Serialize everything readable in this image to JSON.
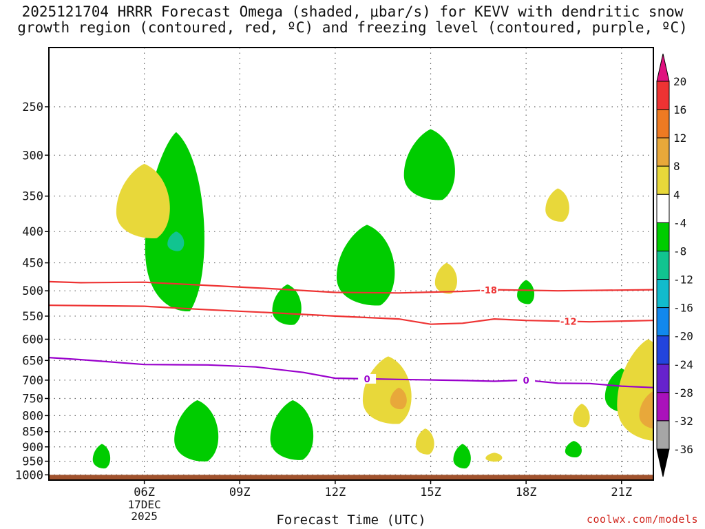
{
  "title": "2025121704 HRRR Forecast Omega (shaded, μbar/s) for KEVV with dendritic snow\ngrowth region (contoured, red, ºC) and freezing level (contoured, purple, ºC)",
  "credit": "coolwx.com/models",
  "chart_data": {
    "type": "contour-time-height",
    "xlabel": "Forecast Time (UTC)",
    "ylabel": "",
    "x_range": [
      "2025-12-17T03:00Z",
      "2025-12-17T22:00Z"
    ],
    "x_ticks": [
      {
        "label": "06Z",
        "sub": [
          "17DEC",
          "2025"
        ],
        "time": "2025-12-17T06:00Z"
      },
      {
        "label": "09Z",
        "sub": [],
        "time": "2025-12-17T09:00Z"
      },
      {
        "label": "12Z",
        "sub": [],
        "time": "2025-12-17T12:00Z"
      },
      {
        "label": "15Z",
        "sub": [],
        "time": "2025-12-17T15:00Z"
      },
      {
        "label": "18Z",
        "sub": [],
        "time": "2025-12-17T18:00Z"
      },
      {
        "label": "21Z",
        "sub": [],
        "time": "2025-12-17T21:00Z"
      }
    ],
    "y_axis": {
      "scale": "log-pressure",
      "units": "mb",
      "reversed": true,
      "range": [
        1020,
        200
      ],
      "ticks": [
        250,
        300,
        350,
        400,
        450,
        500,
        550,
        600,
        650,
        700,
        750,
        800,
        850,
        900,
        950,
        1000
      ]
    },
    "grid": true,
    "colorbar": {
      "labels": [
        20,
        16,
        12,
        8,
        4,
        -4,
        -8,
        -12,
        -16,
        -20,
        -24,
        -28,
        -32,
        -36
      ],
      "bins": [
        {
          "from": 20,
          "to": null,
          "color": "#e0117f"
        },
        {
          "from": 16,
          "to": 20,
          "color": "#ee3333"
        },
        {
          "from": 12,
          "to": 16,
          "color": "#ee7a22"
        },
        {
          "from": 8,
          "to": 12,
          "color": "#e8a83a"
        },
        {
          "from": 4,
          "to": 8,
          "color": "#e8d83a"
        },
        {
          "from": -4,
          "to": 4,
          "color": "#ffffff"
        },
        {
          "from": -8,
          "to": -4,
          "color": "#00cc00"
        },
        {
          "from": -12,
          "to": -8,
          "color": "#11c490"
        },
        {
          "from": -16,
          "to": -12,
          "color": "#11bbcc"
        },
        {
          "from": -20,
          "to": -16,
          "color": "#1188ee"
        },
        {
          "from": -24,
          "to": -20,
          "color": "#2244dd"
        },
        {
          "from": -28,
          "to": -24,
          "color": "#6622cc"
        },
        {
          "from": -32,
          "to": -28,
          "color": "#aa11bb"
        },
        {
          "from": -36,
          "to": -32,
          "color": "#a6a6a6"
        },
        {
          "from": null,
          "to": -36,
          "color": "#000000"
        }
      ]
    },
    "isotherms": [
      {
        "label": "-18",
        "color": "#ee3333",
        "label_at": "2025-12-17T16:50Z",
        "points": [
          [
            "2025-12-17T03:00Z",
            483
          ],
          [
            "2025-12-17T04:00Z",
            485
          ],
          [
            "2025-12-17T06:00Z",
            484
          ],
          [
            "2025-12-17T08:00Z",
            490
          ],
          [
            "2025-12-17T10:00Z",
            496
          ],
          [
            "2025-12-17T12:00Z",
            503
          ],
          [
            "2025-12-17T14:00Z",
            504
          ],
          [
            "2025-12-17T16:00Z",
            501
          ],
          [
            "2025-12-17T17:00Z",
            498
          ],
          [
            "2025-12-17T19:00Z",
            500
          ],
          [
            "2025-12-17T22:00Z",
            498
          ]
        ]
      },
      {
        "label": "-12",
        "color": "#ee3333",
        "label_at": "2025-12-17T19:20Z",
        "points": [
          [
            "2025-12-17T03:00Z",
            528
          ],
          [
            "2025-12-17T06:00Z",
            530
          ],
          [
            "2025-12-17T08:00Z",
            537
          ],
          [
            "2025-12-17T10:00Z",
            543
          ],
          [
            "2025-12-17T12:00Z",
            550
          ],
          [
            "2025-12-17T14:00Z",
            556
          ],
          [
            "2025-12-17T15:00Z",
            567
          ],
          [
            "2025-12-17T16:00Z",
            565
          ],
          [
            "2025-12-17T17:00Z",
            556
          ],
          [
            "2025-12-17T18:00Z",
            559
          ],
          [
            "2025-12-17T20:00Z",
            562
          ],
          [
            "2025-12-17T22:00Z",
            559
          ]
        ]
      },
      {
        "label": "0",
        "color": "#9900cc",
        "label_at": "2025-12-17T13:00Z",
        "label_at2": "2025-12-17T18:00Z",
        "points": [
          [
            "2025-12-17T03:00Z",
            643
          ],
          [
            "2025-12-17T04:00Z",
            648
          ],
          [
            "2025-12-17T06:00Z",
            660
          ],
          [
            "2025-12-17T08:00Z",
            661
          ],
          [
            "2025-12-17T09:30Z",
            666
          ],
          [
            "2025-12-17T11:00Z",
            680
          ],
          [
            "2025-12-17T12:00Z",
            695
          ],
          [
            "2025-12-17T14:00Z",
            698
          ],
          [
            "2025-12-17T16:00Z",
            701
          ],
          [
            "2025-12-17T17:00Z",
            703
          ],
          [
            "2025-12-17T18:00Z",
            700
          ],
          [
            "2025-12-17T19:00Z",
            708
          ],
          [
            "2025-12-17T20:00Z",
            709
          ],
          [
            "2025-12-17T21:00Z",
            716
          ],
          [
            "2025-12-17T22:00Z",
            720
          ]
        ]
      }
    ],
    "omega_areas": [
      {
        "category": "-4 to -8",
        "color": "#00cc00",
        "time": "2025-12-17T07:00Z",
        "p_top": 275,
        "p_bottom": 540
      },
      {
        "category": "-8 to -12",
        "color": "#11c490",
        "time": "2025-12-17T07:00Z",
        "p_top": 400,
        "p_bottom": 430
      },
      {
        "category": "4 to 8",
        "color": "#e8d83a",
        "time": "2025-12-17T06:00Z",
        "p_top": 310,
        "p_bottom": 410
      },
      {
        "category": "-4 to -8",
        "color": "#00cc00",
        "time": "2025-12-17T10:30Z",
        "p_top": 488,
        "p_bottom": 568
      },
      {
        "category": "-4 to -8",
        "color": "#00cc00",
        "time": "2025-12-17T13:00Z",
        "p_top": 390,
        "p_bottom": 528
      },
      {
        "category": "-4 to -8",
        "color": "#00cc00",
        "time": "2025-12-17T15:00Z",
        "p_top": 272,
        "p_bottom": 355
      },
      {
        "category": "4 to 8",
        "color": "#e8d83a",
        "time": "2025-12-17T15:30Z",
        "p_top": 450,
        "p_bottom": 505
      },
      {
        "category": "-4 to -8",
        "color": "#00cc00",
        "time": "2025-12-17T18:00Z",
        "p_top": 480,
        "p_bottom": 525
      },
      {
        "category": "4 to 8",
        "color": "#e8d83a",
        "time": "2025-12-17T19:00Z",
        "p_top": 340,
        "p_bottom": 385
      },
      {
        "category": "4 to 8",
        "color": "#e8d83a",
        "time": "2025-12-17T13:40Z",
        "p_top": 640,
        "p_bottom": 825
      },
      {
        "category": "8 to 12",
        "color": "#e8a83a",
        "time": "2025-12-17T14:00Z",
        "p_top": 720,
        "p_bottom": 780
      },
      {
        "category": "-4 to -8",
        "color": "#00cc00",
        "time": "2025-12-17T07:40Z",
        "p_top": 755,
        "p_bottom": 950
      },
      {
        "category": "-4 to -8",
        "color": "#00cc00",
        "time": "2025-12-17T10:40Z",
        "p_top": 755,
        "p_bottom": 945
      },
      {
        "category": "-4 to -8",
        "color": "#00cc00",
        "time": "2025-12-17T04:40Z",
        "p_top": 890,
        "p_bottom": 975
      },
      {
        "category": "4 to 8",
        "color": "#e8d83a",
        "time": "2025-12-17T14:50Z",
        "p_top": 840,
        "p_bottom": 925
      },
      {
        "category": "-4 to -8",
        "color": "#00cc00",
        "time": "2025-12-17T16:00Z",
        "p_top": 890,
        "p_bottom": 975
      },
      {
        "category": "4 to 8",
        "color": "#e8d83a",
        "time": "2025-12-17T17:00Z",
        "p_top": 920,
        "p_bottom": 950
      },
      {
        "category": "-4 to -8",
        "color": "#00cc00",
        "time": "2025-12-17T19:30Z",
        "p_top": 880,
        "p_bottom": 935
      },
      {
        "category": "4 to 8",
        "color": "#e8d83a",
        "time": "2025-12-17T19:45Z",
        "p_top": 765,
        "p_bottom": 835
      },
      {
        "category": "-4 to -8",
        "color": "#00cc00",
        "time": "2025-12-17T21:00Z",
        "p_top": 670,
        "p_bottom": 790
      },
      {
        "category": "4 to 8",
        "color": "#e8d83a",
        "time": "2025-12-17T21:50Z",
        "p_top": 600,
        "p_bottom": 880
      },
      {
        "category": "8 to 12",
        "color": "#e8a83a",
        "time": "2025-12-17T22:00Z",
        "p_top": 730,
        "p_bottom": 840
      }
    ],
    "ground": {
      "color": "#a0522d",
      "p_top": 1000
    }
  }
}
